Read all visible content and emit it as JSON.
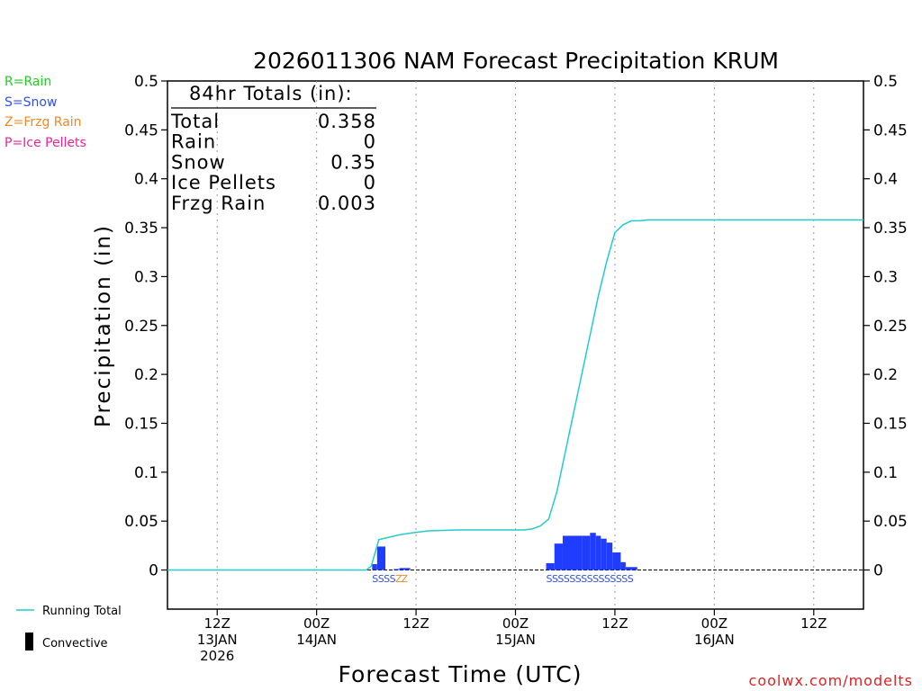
{
  "colors": {
    "rain": "#22cc22",
    "snow": "#3050ee",
    "frzg": "#ee8822",
    "ice": "#ee2299",
    "line": "#22cccc",
    "bar": "#1f3cff",
    "convective": "#000000",
    "credit": "#dd2222"
  },
  "legend": {
    "rain": "R=Rain",
    "snow": "S=Snow",
    "frzg": "Z=Frzg Rain",
    "ice": "P=Ice Pellets",
    "running_total": "Running Total",
    "convective": "Convective"
  },
  "totals": {
    "header": "84hr Totals (in):",
    "rows": [
      {
        "label": "Total",
        "value": "0.358"
      },
      {
        "label": "Rain",
        "value": "0"
      },
      {
        "label": "Snow",
        "value": "0.35"
      },
      {
        "label": "Ice Pellets",
        "value": "0"
      },
      {
        "label": "Frzg Rain",
        "value": "0.003"
      }
    ]
  },
  "credit": "coolwx.com/modelts",
  "chart_data": {
    "type": "bar",
    "title": "2026011306 NAM Forecast Precipitation KRUM",
    "ylabel": "Precipitation (in)",
    "xlabel": "Forecast Time (UTC)",
    "xlim": [
      0,
      84
    ],
    "ylim": [
      -0.04,
      0.5
    ],
    "yticks": [
      0,
      0.05,
      0.1,
      0.15,
      0.2,
      0.25,
      0.3,
      0.35,
      0.4,
      0.45,
      0.5
    ],
    "ytick_labels": [
      "0",
      "0.05",
      "0.1",
      "0.15",
      "0.2",
      "0.25",
      "0.3",
      "0.35",
      "0.4",
      "0.45",
      "0.5"
    ],
    "xticks": [
      {
        "hour": 6,
        "lines": [
          "12Z",
          "13JAN",
          "2026"
        ]
      },
      {
        "hour": 18,
        "lines": [
          "00Z",
          "14JAN"
        ]
      },
      {
        "hour": 30,
        "lines": [
          "12Z"
        ]
      },
      {
        "hour": 42,
        "lines": [
          "00Z",
          "15JAN"
        ]
      },
      {
        "hour": 54,
        "lines": [
          "12Z"
        ]
      },
      {
        "hour": 66,
        "lines": [
          "00Z",
          "16JAN"
        ]
      },
      {
        "hour": 78,
        "lines": [
          "12Z"
        ]
      }
    ],
    "bars": [
      {
        "start": 24.7,
        "end": 25.3,
        "value": 0.006
      },
      {
        "start": 25.3,
        "end": 26.3,
        "value": 0.024
      },
      {
        "start": 27.3,
        "end": 28.0,
        "value": 0.001
      },
      {
        "start": 28.0,
        "end": 29.3,
        "value": 0.002
      },
      {
        "start": 45.7,
        "end": 46.7,
        "value": 0.007
      },
      {
        "start": 46.7,
        "end": 47.7,
        "value": 0.027
      },
      {
        "start": 47.7,
        "end": 50.0,
        "value": 0.035
      },
      {
        "start": 50.0,
        "end": 51.0,
        "value": 0.035
      },
      {
        "start": 51.0,
        "end": 51.7,
        "value": 0.038
      },
      {
        "start": 51.7,
        "end": 52.3,
        "value": 0.035
      },
      {
        "start": 52.3,
        "end": 53.0,
        "value": 0.032
      },
      {
        "start": 53.0,
        "end": 53.7,
        "value": 0.028
      },
      {
        "start": 53.7,
        "end": 54.7,
        "value": 0.018
      },
      {
        "start": 54.7,
        "end": 55.3,
        "value": 0.008
      },
      {
        "start": 55.3,
        "end": 56.7,
        "value": 0.003
      }
    ],
    "running_total": {
      "name": "Running Total",
      "x": [
        0,
        24,
        24.6,
        25.5,
        26.5,
        28,
        29.5,
        31.5,
        35,
        40,
        43,
        44,
        45,
        46,
        47,
        48,
        49,
        50,
        51,
        52,
        53,
        54,
        55,
        56,
        57,
        58,
        60,
        70,
        84
      ],
      "y": [
        0,
        0,
        0.004,
        0.031,
        0.033,
        0.036,
        0.038,
        0.04,
        0.041,
        0.041,
        0.041,
        0.042,
        0.045,
        0.052,
        0.08,
        0.12,
        0.16,
        0.2,
        0.24,
        0.28,
        0.315,
        0.345,
        0.353,
        0.357,
        0.357,
        0.358,
        0.358,
        0.358,
        0.358
      ]
    },
    "ptype_markers": [
      {
        "label": "S",
        "type": "snow",
        "hours": [
          24.7,
          25.4,
          26.1,
          26.8
        ]
      },
      {
        "label": "Z",
        "type": "frzg",
        "hours": [
          27.5,
          28.2
        ]
      },
      {
        "label": "S",
        "type": "snow",
        "hours": [
          45.7,
          46.4,
          47.1,
          47.8,
          48.5,
          49.2,
          49.9,
          50.6,
          51.3,
          52.0,
          52.7,
          53.4,
          54.1,
          54.8,
          55.5
        ]
      }
    ]
  }
}
